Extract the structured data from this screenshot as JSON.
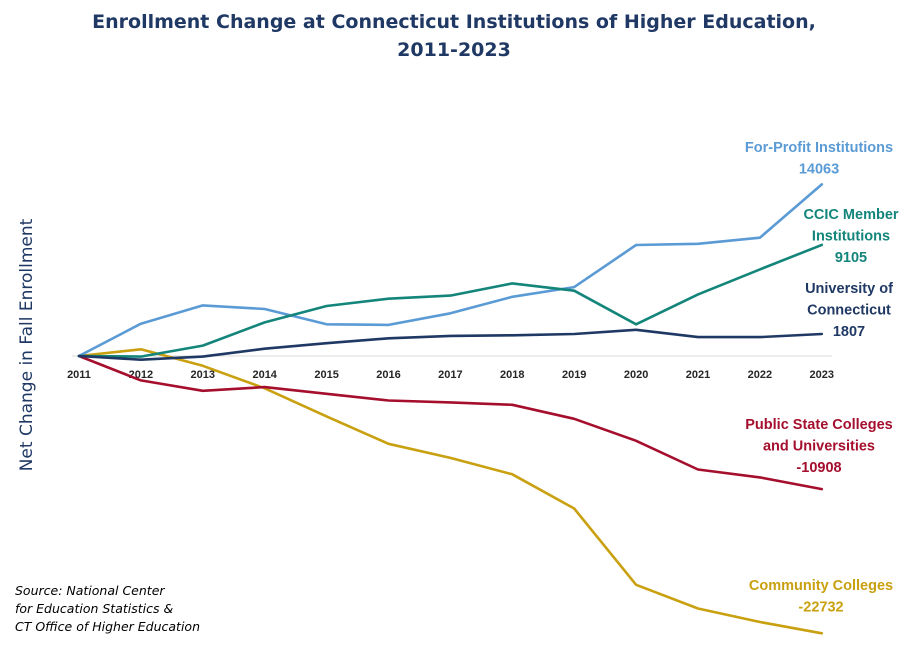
{
  "chart_data": {
    "type": "line",
    "title": "Enrollment Change at Connecticut Institutions of Higher Education,",
    "subtitle": "2011-2023",
    "xlabel": "",
    "ylabel": "Net Change in Fall Enrollment",
    "x": [
      "2011",
      "2012",
      "2013",
      "2014",
      "2015",
      "2016",
      "2017",
      "2018",
      "2019",
      "2020",
      "2021",
      "2022",
      "2023"
    ],
    "ylim": [
      -24000,
      16000
    ],
    "grid": false,
    "legend": "none (series labeled at line ends)",
    "series": [
      {
        "label_lines": [
          "For-Profit Institutions",
          "14063"
        ],
        "color": "#5b9bd5",
        "values": [
          0,
          2650,
          4150,
          3850,
          2600,
          2550,
          3500,
          4850,
          5650,
          9100,
          9200,
          9700,
          14063
        ]
      },
      {
        "label_lines": [
          "CCIC Member",
          "Institutions",
          "9105"
        ],
        "color": "#13857a",
        "values": [
          0,
          -50,
          850,
          2750,
          4100,
          4700,
          4950,
          5950,
          5350,
          2600,
          5050,
          7100,
          9105
        ]
      },
      {
        "label_lines": [
          "University of",
          "Connecticut",
          "1807"
        ],
        "color": "#1f3864",
        "values": [
          0,
          -300,
          -50,
          600,
          1050,
          1450,
          1650,
          1700,
          1800,
          2150,
          1550,
          1550,
          1807
        ]
      },
      {
        "label_lines": [
          "Public State Colleges",
          "and Universities",
          "-10908"
        ],
        "color": "#a50f2d",
        "values": [
          0,
          -2000,
          -2850,
          -2550,
          -3100,
          -3650,
          -3800,
          -4000,
          -5150,
          -6950,
          -9300,
          -9950,
          -10908
        ]
      },
      {
        "label_lines": [
          "Community Colleges",
          "-22732"
        ],
        "color": "#c9a010",
        "values": [
          0,
          550,
          -800,
          -2650,
          -4950,
          -7200,
          -8350,
          -9700,
          -12500,
          -18750,
          -20700,
          -21800,
          -22732
        ]
      }
    ],
    "source_lines": [
      "Source: National Center",
      "for Education Statistics &",
      "CT Office of Higher Education"
    ]
  }
}
